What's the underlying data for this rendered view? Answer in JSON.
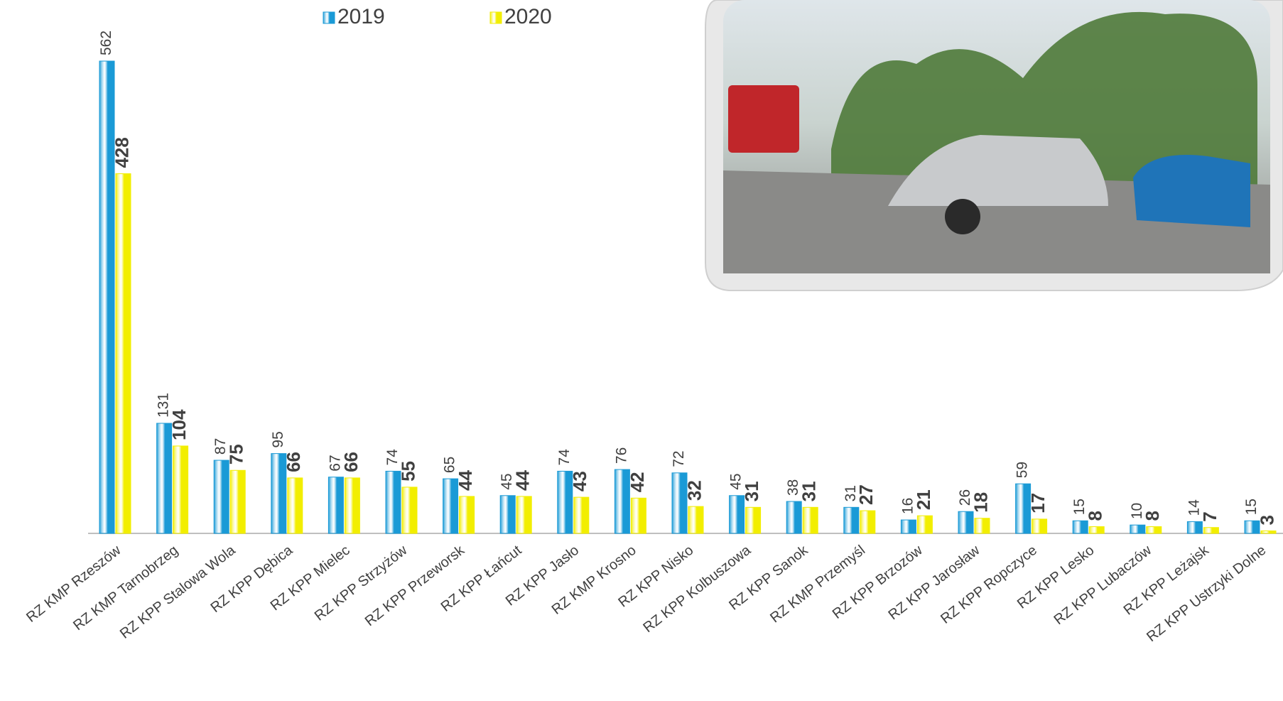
{
  "chart_data": {
    "type": "bar",
    "categories": [
      "RZ KMP Rzeszów",
      "RZ KMP Tarnobrzeg",
      "RZ KPP Stalowa Wola",
      "RZ KPP Dębica",
      "RZ KPP Mielec",
      "RZ KPP Strzyżów",
      "RZ KPP Przeworsk",
      "RZ KPP Łańcut",
      "RZ KPP Jasło",
      "RZ KMP Krosno",
      "RZ KPP Nisko",
      "RZ KPP Kolbuszowa",
      "RZ KPP Sanok",
      "RZ KMP Przemyśl",
      "RZ KPP Brzozów",
      "RZ KPP Jarosław",
      "RZ KPP Ropczyce",
      "RZ KPP Lesko",
      "RZ KPP Lubaczów",
      "RZ KPP Leżajsk",
      "RZ KPP Ustrzyki Dolne"
    ],
    "series": [
      {
        "name": "2019",
        "color": "#1a9ad6",
        "values": [
          562,
          131,
          87,
          95,
          67,
          74,
          65,
          45,
          74,
          76,
          72,
          45,
          38,
          31,
          16,
          26,
          59,
          15,
          10,
          14,
          15
        ]
      },
      {
        "name": "2020",
        "color": "#f2ee00",
        "values": [
          428,
          104,
          75,
          66,
          66,
          55,
          44,
          44,
          43,
          42,
          32,
          31,
          31,
          27,
          21,
          18,
          17,
          8,
          8,
          7,
          3
        ]
      }
    ],
    "legend": "top"
  }
}
